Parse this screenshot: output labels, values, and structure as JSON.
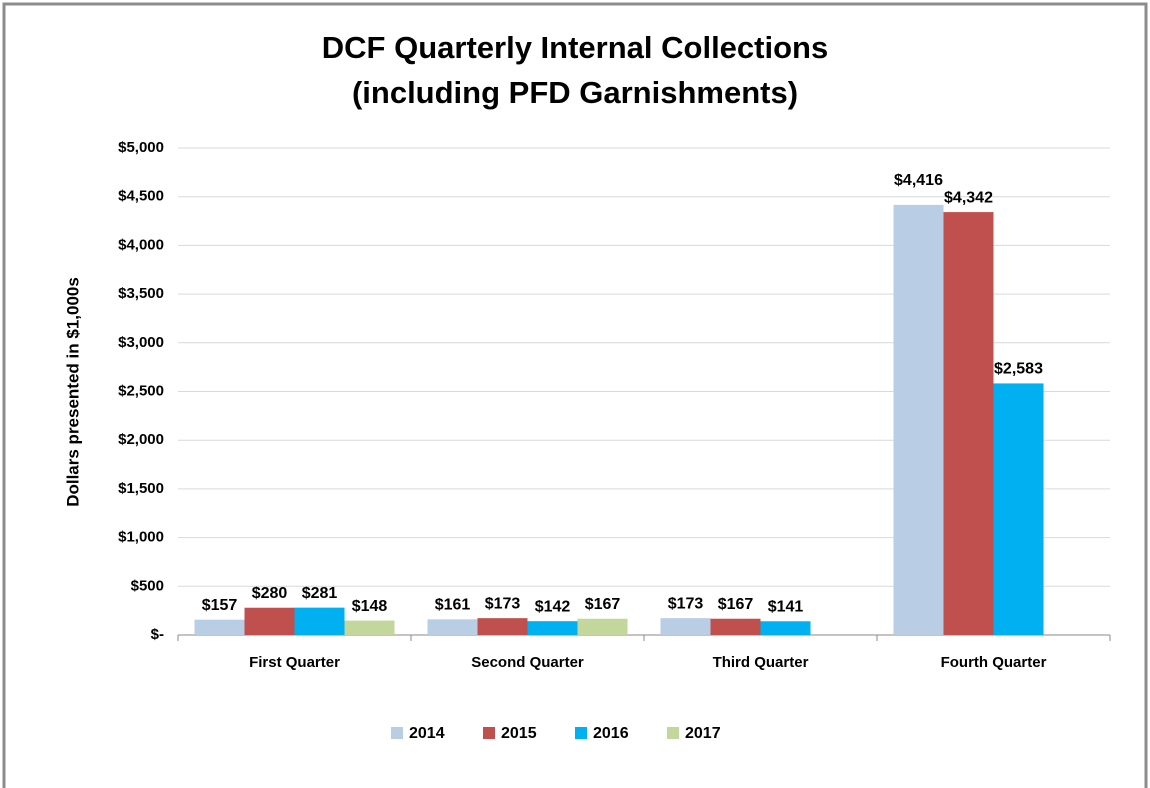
{
  "chart_data": {
    "type": "bar",
    "title": [
      "DCF Quarterly Internal Collections",
      "(including PFD Garnishments)"
    ],
    "y_label": "Dollars presented in $1,000s",
    "categories": [
      "First Quarter",
      "Second Quarter",
      "Third Quarter",
      "Fourth Quarter"
    ],
    "series": [
      {
        "name": "2014",
        "color": "#b9cde5",
        "values": [
          157,
          161,
          173,
          4416
        ],
        "value_labels": [
          "$157",
          "$161",
          "$173",
          "$4,416"
        ]
      },
      {
        "name": "2015",
        "color": "#c0504d",
        "values": [
          280,
          173,
          167,
          4342
        ],
        "value_labels": [
          "$280",
          "$173",
          "$167",
          "$4,342"
        ]
      },
      {
        "name": "2016",
        "color": "#00b0f0",
        "values": [
          281,
          142,
          141,
          2583
        ],
        "value_labels": [
          "$281",
          "$142",
          "$141",
          "$2,583"
        ]
      },
      {
        "name": "2017",
        "color": "#c3d69b",
        "values": [
          148,
          167,
          null,
          null
        ],
        "value_labels": [
          "$148",
          "$167",
          null,
          null
        ]
      }
    ],
    "ylim": [
      0,
      5000
    ],
    "yticks": [
      {
        "value": 0,
        "label": "$-"
      },
      {
        "value": 500,
        "label": "$500"
      },
      {
        "value": 1000,
        "label": "$1,000"
      },
      {
        "value": 1500,
        "label": "$1,500"
      },
      {
        "value": 2000,
        "label": "$2,000"
      },
      {
        "value": 2500,
        "label": "$2,500"
      },
      {
        "value": 3000,
        "label": "$3,000"
      },
      {
        "value": 3500,
        "label": "$3,500"
      },
      {
        "value": 4000,
        "label": "$4,000"
      },
      {
        "value": 4500,
        "label": "$4,500"
      },
      {
        "value": 5000,
        "label": "$5,000"
      }
    ],
    "grid": true,
    "legend": "bottom"
  }
}
